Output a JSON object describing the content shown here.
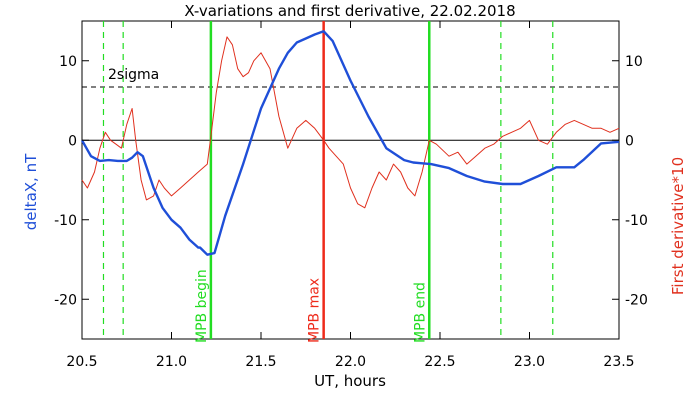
{
  "chart_data": {
    "type": "line",
    "title": "X-variations and first derivative, 22.02.2018",
    "xlabel": "UT, hours",
    "ylabel_left": "deltaX, nT",
    "ylabel_right": "First derivative*10",
    "xlim": [
      20.5,
      23.5
    ],
    "ylim": [
      -25,
      15
    ],
    "x_ticks": [
      "20.5",
      "21.0",
      "21.5",
      "22.0",
      "22.5",
      "23.0",
      "23.5"
    ],
    "y_ticks_left": [
      "-20",
      "-10",
      "0",
      "10"
    ],
    "y_ticks_right": [
      "-20",
      "-10",
      "0",
      "10"
    ],
    "colors": {
      "deltaX": "#1f4fd8",
      "derivative": "#e0301e",
      "mpb_edges": "#22dd22",
      "mpb_max": "#ee2a1a",
      "threshold": "#000000"
    },
    "threshold": {
      "label": "2sigma",
      "value": 6.7
    },
    "zero_line": 0,
    "vlines": [
      {
        "x": 21.22,
        "label": "MPB begin",
        "color": "#22dd22",
        "style": "solid"
      },
      {
        "x": 21.85,
        "label": "MPB max",
        "color": "#ee2a1a",
        "style": "solid"
      },
      {
        "x": 22.44,
        "label": "MPB end",
        "color": "#22dd22",
        "style": "solid"
      }
    ],
    "dashed_vlines": [
      20.62,
      20.73,
      22.84,
      23.13
    ],
    "series": [
      {
        "name": "deltaX, nT",
        "color": "#1f4fd8",
        "x": [
          20.5,
          20.55,
          20.6,
          20.65,
          20.7,
          20.75,
          20.78,
          20.81,
          20.84,
          20.9,
          20.95,
          21.0,
          21.05,
          21.1,
          21.15,
          21.16,
          21.2,
          21.24,
          21.3,
          21.4,
          21.5,
          21.6,
          21.65,
          21.7,
          21.75,
          21.8,
          21.85,
          21.9,
          22.0,
          22.1,
          22.2,
          22.3,
          22.35,
          22.4,
          22.45,
          22.55,
          22.65,
          22.75,
          22.85,
          22.95,
          23.05,
          23.15,
          23.25,
          23.3,
          23.4,
          23.5
        ],
        "y": [
          0,
          -2,
          -2.6,
          -2.5,
          -2.6,
          -2.6,
          -2.2,
          -1.5,
          -2.0,
          -6,
          -8.5,
          -10,
          -11,
          -12.5,
          -13.5,
          -13.5,
          -14.4,
          -14.2,
          -9.5,
          -3,
          4,
          9,
          11,
          12.3,
          12.8,
          13.3,
          13.7,
          12.5,
          7.5,
          3,
          -1,
          -2.5,
          -2.8,
          -2.9,
          -3,
          -3.5,
          -4.5,
          -5.2,
          -5.5,
          -5.5,
          -4.5,
          -3.4,
          -3.4,
          -2.5,
          -0.4,
          -0.2
        ]
      },
      {
        "name": "First derivative*10",
        "color": "#e0301e",
        "x": [
          20.5,
          20.53,
          20.57,
          20.6,
          20.63,
          20.66,
          20.69,
          20.72,
          20.75,
          20.78,
          20.8,
          20.83,
          20.86,
          20.9,
          20.93,
          20.96,
          21.0,
          21.05,
          21.1,
          21.15,
          21.2,
          21.22,
          21.25,
          21.28,
          21.31,
          21.34,
          21.37,
          21.4,
          21.43,
          21.46,
          21.5,
          21.55,
          21.6,
          21.65,
          21.7,
          21.75,
          21.8,
          21.85,
          21.88,
          21.92,
          21.96,
          22.0,
          22.04,
          22.08,
          22.12,
          22.16,
          22.2,
          22.24,
          22.28,
          22.32,
          22.36,
          22.4,
          22.44,
          22.48,
          22.55,
          22.6,
          22.65,
          22.7,
          22.75,
          22.8,
          22.85,
          22.9,
          22.95,
          23.0,
          23.05,
          23.1,
          23.15,
          23.2,
          23.25,
          23.3,
          23.35,
          23.4,
          23.45,
          23.5
        ],
        "y": [
          -5,
          -6,
          -4,
          -1,
          1,
          0,
          -0.5,
          -1,
          2,
          4,
          0,
          -5,
          -7.5,
          -7,
          -5,
          -6,
          -7,
          -6,
          -5,
          -4,
          -3,
          0.5,
          6,
          10,
          13,
          12,
          9,
          8,
          8.5,
          10,
          11,
          9,
          3,
          -1,
          1.5,
          2.5,
          1.5,
          0,
          -1,
          -2,
          -3,
          -6,
          -8,
          -8.5,
          -6,
          -4,
          -5,
          -3,
          -4,
          -6,
          -7,
          -4,
          0,
          -0.5,
          -2,
          -1.5,
          -3,
          -2,
          -1,
          -0.5,
          0.5,
          1,
          1.5,
          2.5,
          0,
          -0.5,
          1,
          2,
          2.5,
          2,
          1.5,
          1.5,
          1,
          1.5
        ]
      }
    ],
    "grid": false
  }
}
